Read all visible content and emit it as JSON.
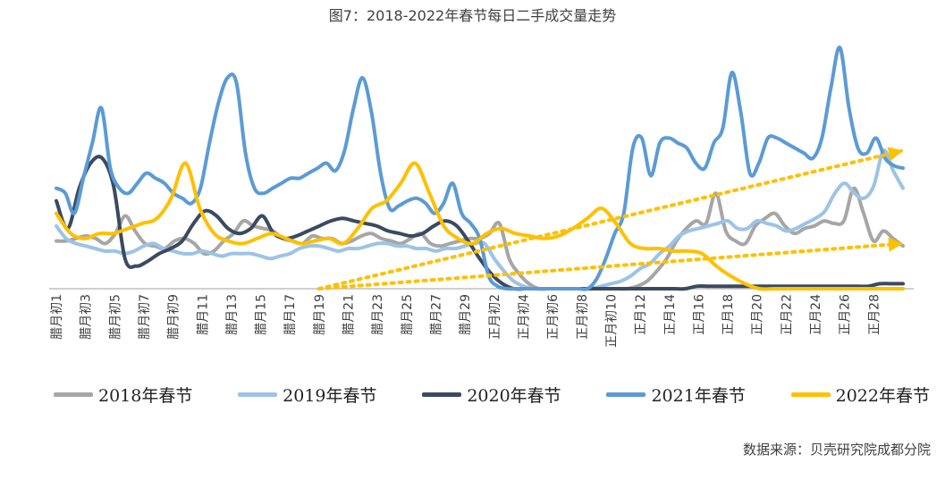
{
  "chart_data": {
    "type": "line",
    "title": "图7：2018-2022年春节每日二手成交量走势",
    "xlabel": "",
    "ylabel": "",
    "ylim": [
      0,
      100
    ],
    "grid": false,
    "legend_position": "bottom",
    "x_tick_labels": [
      "腊月初1",
      "腊月初3",
      "腊月初5",
      "腊月初7",
      "腊月初9",
      "腊月11",
      "腊月13",
      "腊月15",
      "腊月17",
      "腊月19",
      "腊月21",
      "腊月23",
      "腊月25",
      "腊月27",
      "腊月29",
      "正月初2",
      "正月初4",
      "正月初6",
      "正月初8",
      "正月初10",
      "正月12",
      "正月14",
      "正月16",
      "正月18",
      "正月20",
      "正月22",
      "正月24",
      "正月26",
      "正月28"
    ],
    "x_count": 59,
    "series": [
      {
        "name": "2018年春节",
        "color": "#a6a6a6",
        "values": [
          19,
          19,
          20,
          21,
          20,
          18,
          22,
          29,
          23,
          18,
          17,
          16,
          19,
          20,
          18,
          14,
          15,
          19,
          22,
          27,
          25,
          24,
          23,
          20,
          19,
          18,
          21,
          20,
          20,
          18,
          19,
          21,
          22,
          20,
          19,
          18,
          20,
          22,
          18,
          17,
          18,
          19,
          20,
          20,
          22,
          26,
          12,
          6,
          2,
          0,
          0,
          0,
          0,
          0,
          0,
          0,
          0,
          0,
          0,
          1,
          3,
          7,
          12,
          19,
          24,
          27,
          26,
          38,
          23,
          19,
          18,
          25,
          28,
          30,
          25,
          22,
          24,
          25,
          27,
          26,
          27,
          40,
          30,
          19,
          23,
          20,
          17
        ]
      },
      {
        "name": "2019年春节",
        "color": "#9dc3e6",
        "values": [
          25,
          20,
          18,
          17,
          16,
          15,
          15,
          14,
          15,
          17,
          18,
          16,
          15,
          14,
          14,
          15,
          14,
          13,
          14,
          14,
          14,
          13,
          12,
          13,
          14,
          16,
          17,
          17,
          16,
          15,
          16,
          16,
          17,
          18,
          18,
          17,
          17,
          16,
          16,
          15,
          16,
          16,
          17,
          18,
          18,
          12,
          7,
          3,
          1,
          0,
          0,
          0,
          0,
          0,
          0,
          0,
          1,
          2,
          3,
          5,
          8,
          10,
          14,
          17,
          21,
          23,
          24,
          25,
          26,
          27,
          24,
          24,
          27,
          26,
          25,
          23,
          24,
          26,
          28,
          31,
          38,
          42,
          38,
          36,
          41,
          55,
          47,
          40
        ]
      },
      {
        "name": "2020年春节",
        "color": "#3a4a61",
        "values": [
          35,
          24,
          40,
          50,
          52,
          41,
          12,
          9,
          11,
          14,
          16,
          19,
          26,
          31,
          29,
          24,
          22,
          24,
          29,
          22,
          20,
          21,
          23,
          25,
          27,
          28,
          27,
          26,
          25,
          23,
          22,
          21,
          22,
          25,
          27,
          25,
          19,
          12,
          6,
          2,
          0,
          0,
          0,
          0,
          0,
          0,
          0,
          0,
          0,
          0,
          0,
          0,
          0,
          0,
          0,
          0,
          1,
          1,
          1,
          1,
          1,
          1,
          1,
          1,
          1,
          1,
          1,
          1,
          1,
          1,
          1,
          1,
          2,
          2,
          2
        ]
      },
      {
        "name": "2021年春节",
        "color": "#5b9bd5",
        "values": [
          40,
          38,
          30,
          44,
          58,
          72,
          48,
          40,
          38,
          42,
          46,
          44,
          42,
          38,
          36,
          34,
          40,
          58,
          74,
          84,
          82,
          54,
          40,
          38,
          40,
          42,
          44,
          44,
          46,
          48,
          50,
          47,
          55,
          72,
          84,
          70,
          46,
          32,
          33,
          35,
          36,
          34,
          30,
          34,
          42,
          30,
          26,
          20,
          5,
          1,
          0,
          0,
          0,
          0,
          0,
          0,
          0,
          0,
          0,
          0,
          4,
          12,
          22,
          30,
          56,
          60,
          45,
          58,
          60,
          58,
          56,
          50,
          48,
          58,
          64,
          86,
          70,
          46,
          50,
          60,
          60,
          58,
          56,
          54,
          52,
          60,
          80,
          96,
          72,
          56,
          54,
          60,
          52,
          49,
          48
        ]
      },
      {
        "name": "2022年春节",
        "color": "#ffc000",
        "values": [
          30,
          22,
          20,
          22,
          22,
          24,
          26,
          28,
          36,
          50,
          32,
          22,
          19,
          18,
          20,
          22,
          20,
          18,
          19,
          20,
          18,
          24,
          32,
          35,
          42,
          50,
          38,
          25,
          20,
          18,
          22,
          24,
          22,
          21,
          20,
          21,
          24,
          28,
          32,
          26,
          18,
          16,
          16,
          15,
          15,
          14,
          9,
          5,
          2,
          0,
          0,
          0,
          0,
          0,
          0,
          0,
          0,
          0,
          0,
          0
        ]
      }
    ],
    "trend_arrows": [
      {
        "name": "upper-trend-arrow",
        "color": "#ffc000",
        "from": [
          18,
          0
        ],
        "to": [
          58,
          55
        ]
      },
      {
        "name": "lower-trend-arrow",
        "color": "#ffc000",
        "from": [
          18,
          0
        ],
        "to": [
          58,
          18
        ]
      }
    ]
  },
  "source_note": "数据来源：贝壳研究院成都分院"
}
